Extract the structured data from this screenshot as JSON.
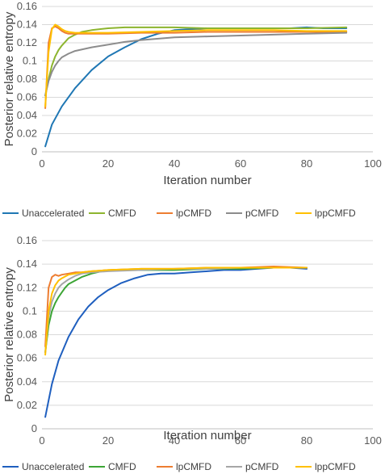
{
  "chart_data": [
    {
      "type": "line",
      "xlabel": "Iteration number",
      "ylabel": "Posterior relative entropy",
      "xlim": [
        0,
        100
      ],
      "ylim": [
        0,
        0.16
      ],
      "xticks": [
        "0",
        "20",
        "40",
        "60",
        "80",
        "100"
      ],
      "yticks": [
        "0",
        "0.02",
        "0.04",
        "0.06",
        "0.08",
        "0.1",
        "0.12",
        "0.14",
        "0.16"
      ],
      "grid": true,
      "legend_position": "bottom",
      "series": [
        {
          "name": "Unaccelerated",
          "color": "#1f77b4",
          "x": [
            1,
            3,
            6,
            10,
            15,
            20,
            25,
            30,
            35,
            40,
            45,
            50,
            55,
            60,
            65,
            70,
            75,
            80,
            85,
            92
          ],
          "y": [
            0.006,
            0.03,
            0.05,
            0.07,
            0.09,
            0.105,
            0.115,
            0.124,
            0.13,
            0.134,
            0.135,
            0.136,
            0.136,
            0.136,
            0.136,
            0.136,
            0.136,
            0.137,
            0.136,
            0.136
          ]
        },
        {
          "name": "CMFD",
          "color": "#8db52f",
          "x": [
            1,
            2,
            3,
            4,
            5,
            6,
            7,
            8,
            10,
            12,
            15,
            20,
            25,
            30,
            35,
            40,
            50,
            60,
            70,
            80,
            92
          ],
          "y": [
            0.062,
            0.08,
            0.095,
            0.105,
            0.112,
            0.117,
            0.121,
            0.125,
            0.129,
            0.132,
            0.134,
            0.136,
            0.137,
            0.137,
            0.137,
            0.137,
            0.136,
            0.136,
            0.136,
            0.136,
            0.137
          ]
        },
        {
          "name": "lpCMFD",
          "color": "#ed7d31",
          "x": [
            1,
            2,
            3,
            4,
            5,
            6,
            7,
            8,
            10,
            12,
            15,
            20,
            30,
            40,
            50,
            60,
            70,
            80,
            92
          ],
          "y": [
            0.048,
            0.12,
            0.136,
            0.138,
            0.136,
            0.133,
            0.131,
            0.13,
            0.13,
            0.13,
            0.13,
            0.13,
            0.131,
            0.131,
            0.132,
            0.132,
            0.132,
            0.132,
            0.132
          ]
        },
        {
          "name": "pCMFD",
          "color": "#8c8c8c",
          "x": [
            1,
            2,
            3,
            4,
            5,
            6,
            8,
            10,
            15,
            20,
            25,
            30,
            40,
            50,
            60,
            70,
            80,
            92
          ],
          "y": [
            0.062,
            0.078,
            0.088,
            0.095,
            0.1,
            0.104,
            0.108,
            0.111,
            0.115,
            0.118,
            0.121,
            0.123,
            0.126,
            0.127,
            0.128,
            0.129,
            0.13,
            0.131
          ]
        },
        {
          "name": "lppCMFD",
          "color": "#ffc000",
          "x": [
            1,
            2,
            3,
            4,
            5,
            6,
            7,
            8,
            10,
            12,
            15,
            20,
            30,
            40,
            50,
            60,
            70,
            80,
            92
          ],
          "y": [
            0.05,
            0.11,
            0.135,
            0.14,
            0.138,
            0.135,
            0.133,
            0.132,
            0.131,
            0.131,
            0.131,
            0.131,
            0.132,
            0.133,
            0.134,
            0.134,
            0.134,
            0.133,
            0.133
          ]
        }
      ]
    },
    {
      "type": "line",
      "xlabel": "Iteration number",
      "ylabel": "Posterior relative entropy",
      "xlim": [
        0,
        100
      ],
      "ylim": [
        0,
        0.16
      ],
      "xticks": [
        "0",
        "20",
        "40",
        "60",
        "80",
        "100"
      ],
      "yticks": [
        "0",
        "0.02",
        "0.04",
        "0.06",
        "0.08",
        "0.1",
        "0.12",
        "0.14",
        "0.16"
      ],
      "grid": true,
      "legend_position": "bottom",
      "series": [
        {
          "name": "Unaccelerated",
          "color": "#1f5fbf",
          "x": [
            1,
            3,
            5,
            8,
            11,
            14,
            17,
            20,
            24,
            28,
            32,
            36,
            40,
            45,
            50,
            55,
            60,
            65,
            70,
            75,
            80
          ],
          "y": [
            0.01,
            0.038,
            0.058,
            0.078,
            0.093,
            0.104,
            0.112,
            0.118,
            0.124,
            0.128,
            0.131,
            0.132,
            0.132,
            0.133,
            0.134,
            0.135,
            0.135,
            0.136,
            0.137,
            0.137,
            0.136
          ]
        },
        {
          "name": "CMFD",
          "color": "#3ca535",
          "x": [
            1,
            2,
            3,
            4,
            5,
            6,
            7,
            8,
            10,
            12,
            15,
            18,
            22,
            26,
            30,
            40,
            50,
            60,
            70,
            80
          ],
          "y": [
            0.065,
            0.088,
            0.1,
            0.107,
            0.112,
            0.116,
            0.12,
            0.123,
            0.126,
            0.129,
            0.132,
            0.134,
            0.135,
            0.135,
            0.135,
            0.135,
            0.136,
            0.136,
            0.137,
            0.137
          ]
        },
        {
          "name": "lpCMFD",
          "color": "#ed7d31",
          "x": [
            1,
            2,
            3,
            4,
            5,
            6,
            8,
            10,
            12,
            15,
            20,
            30,
            40,
            50,
            60,
            70,
            80
          ],
          "y": [
            0.07,
            0.12,
            0.129,
            0.131,
            0.13,
            0.131,
            0.132,
            0.133,
            0.133,
            0.134,
            0.135,
            0.136,
            0.136,
            0.137,
            0.137,
            0.138,
            0.137
          ]
        },
        {
          "name": "pCMFD",
          "color": "#a6a6a6",
          "x": [
            1,
            2,
            3,
            4,
            5,
            6,
            8,
            10,
            12,
            15,
            20,
            30,
            40,
            50,
            60,
            70,
            80
          ],
          "y": [
            0.065,
            0.095,
            0.108,
            0.115,
            0.12,
            0.123,
            0.127,
            0.13,
            0.132,
            0.133,
            0.134,
            0.135,
            0.136,
            0.136,
            0.137,
            0.137,
            0.137
          ]
        },
        {
          "name": "lppCMFD",
          "color": "#ffc000",
          "x": [
            1,
            2,
            3,
            4,
            5,
            6,
            8,
            10,
            12,
            15,
            20,
            30,
            40,
            50,
            60,
            70,
            80
          ],
          "y": [
            0.063,
            0.1,
            0.115,
            0.122,
            0.126,
            0.128,
            0.131,
            0.132,
            0.133,
            0.134,
            0.135,
            0.136,
            0.136,
            0.137,
            0.137,
            0.137,
            0.137
          ]
        }
      ]
    }
  ]
}
